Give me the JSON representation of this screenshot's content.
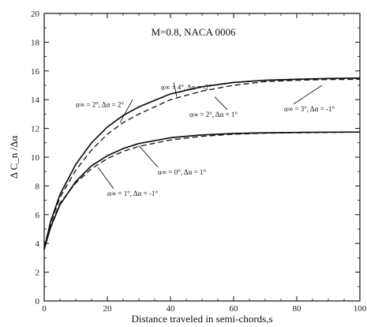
{
  "chart_data": {
    "type": "line",
    "title": "M=0.8, NACA 0006",
    "xlabel": "Distance traveled in semi-chords,s",
    "ylabel": "Δ C_n /Δα",
    "xlim": [
      0,
      100
    ],
    "ylim": [
      0,
      20
    ],
    "xticks": [
      0,
      20,
      40,
      60,
      80,
      100
    ],
    "yticks": [
      0,
      2,
      4,
      6,
      8,
      10,
      12,
      14,
      16,
      18,
      20
    ],
    "grid": false,
    "series": [
      {
        "style": "solid",
        "x": [
          0,
          2,
          5,
          10,
          15,
          20,
          25,
          30,
          40,
          50,
          60,
          70,
          80,
          90,
          100
        ],
        "values": [
          3.6,
          5.1,
          6.7,
          8.3,
          9.4,
          10.1,
          10.6,
          10.95,
          11.35,
          11.55,
          11.65,
          11.7,
          11.72,
          11.74,
          11.75
        ]
      },
      {
        "style": "dashed",
        "x": [
          0,
          2,
          5,
          10,
          15,
          20,
          25,
          30,
          40,
          50,
          60,
          70,
          80,
          90,
          100
        ],
        "values": [
          3.8,
          5.2,
          6.8,
          8.2,
          9.2,
          9.9,
          10.4,
          10.75,
          11.2,
          11.45,
          11.6,
          11.67,
          11.7,
          11.72,
          11.74
        ]
      },
      {
        "style": "solid",
        "x": [
          0,
          2,
          5,
          10,
          15,
          20,
          25,
          30,
          40,
          50,
          60,
          70,
          80,
          90,
          100
        ],
        "values": [
          3.6,
          5.5,
          7.4,
          9.5,
          11.0,
          12.1,
          12.9,
          13.5,
          14.4,
          14.9,
          15.2,
          15.35,
          15.42,
          15.47,
          15.5
        ]
      },
      {
        "style": "dashed",
        "x": [
          0,
          2,
          5,
          10,
          15,
          20,
          25,
          30,
          40,
          50,
          60,
          70,
          80,
          90,
          100
        ],
        "values": [
          3.8,
          5.4,
          7.2,
          9.1,
          10.5,
          11.6,
          12.4,
          13.0,
          14.0,
          14.6,
          15.0,
          15.25,
          15.35,
          15.4,
          15.42
        ]
      }
    ],
    "annotations": [
      {
        "text": "α∞ = 4°, Δα = -2°",
        "x": 37,
        "y": 14.7
      },
      {
        "text": "α∞ = 2°, Δα = 2°",
        "x": 10,
        "y": 13.5
      },
      {
        "text": "α∞ = 2°, Δα = 1°",
        "x": 46,
        "y": 12.8
      },
      {
        "text": "α∞ = 3°, Δα = -1°",
        "x": 76,
        "y": 13.2
      },
      {
        "text": "α∞ = 0°, Δα = 1°",
        "x": 36,
        "y": 8.8
      },
      {
        "text": "α∞ = 1°, Δα = -1°",
        "x": 20,
        "y": 7.3
      }
    ],
    "pointers": [
      {
        "from": [
          41,
          15.2
        ],
        "to": [
          42,
          14.2
        ]
      },
      {
        "from": [
          28,
          14.0
        ],
        "to": [
          24,
          12.4
        ]
      },
      {
        "from": [
          58,
          13.3
        ],
        "to": [
          54,
          14.2
        ]
      },
      {
        "from": [
          79,
          13.7
        ],
        "to": [
          88,
          15.0
        ]
      },
      {
        "from": [
          36,
          9.3
        ],
        "to": [
          30,
          10.8
        ]
      },
      {
        "from": [
          22,
          7.8
        ],
        "to": [
          17,
          9.3
        ]
      }
    ]
  }
}
